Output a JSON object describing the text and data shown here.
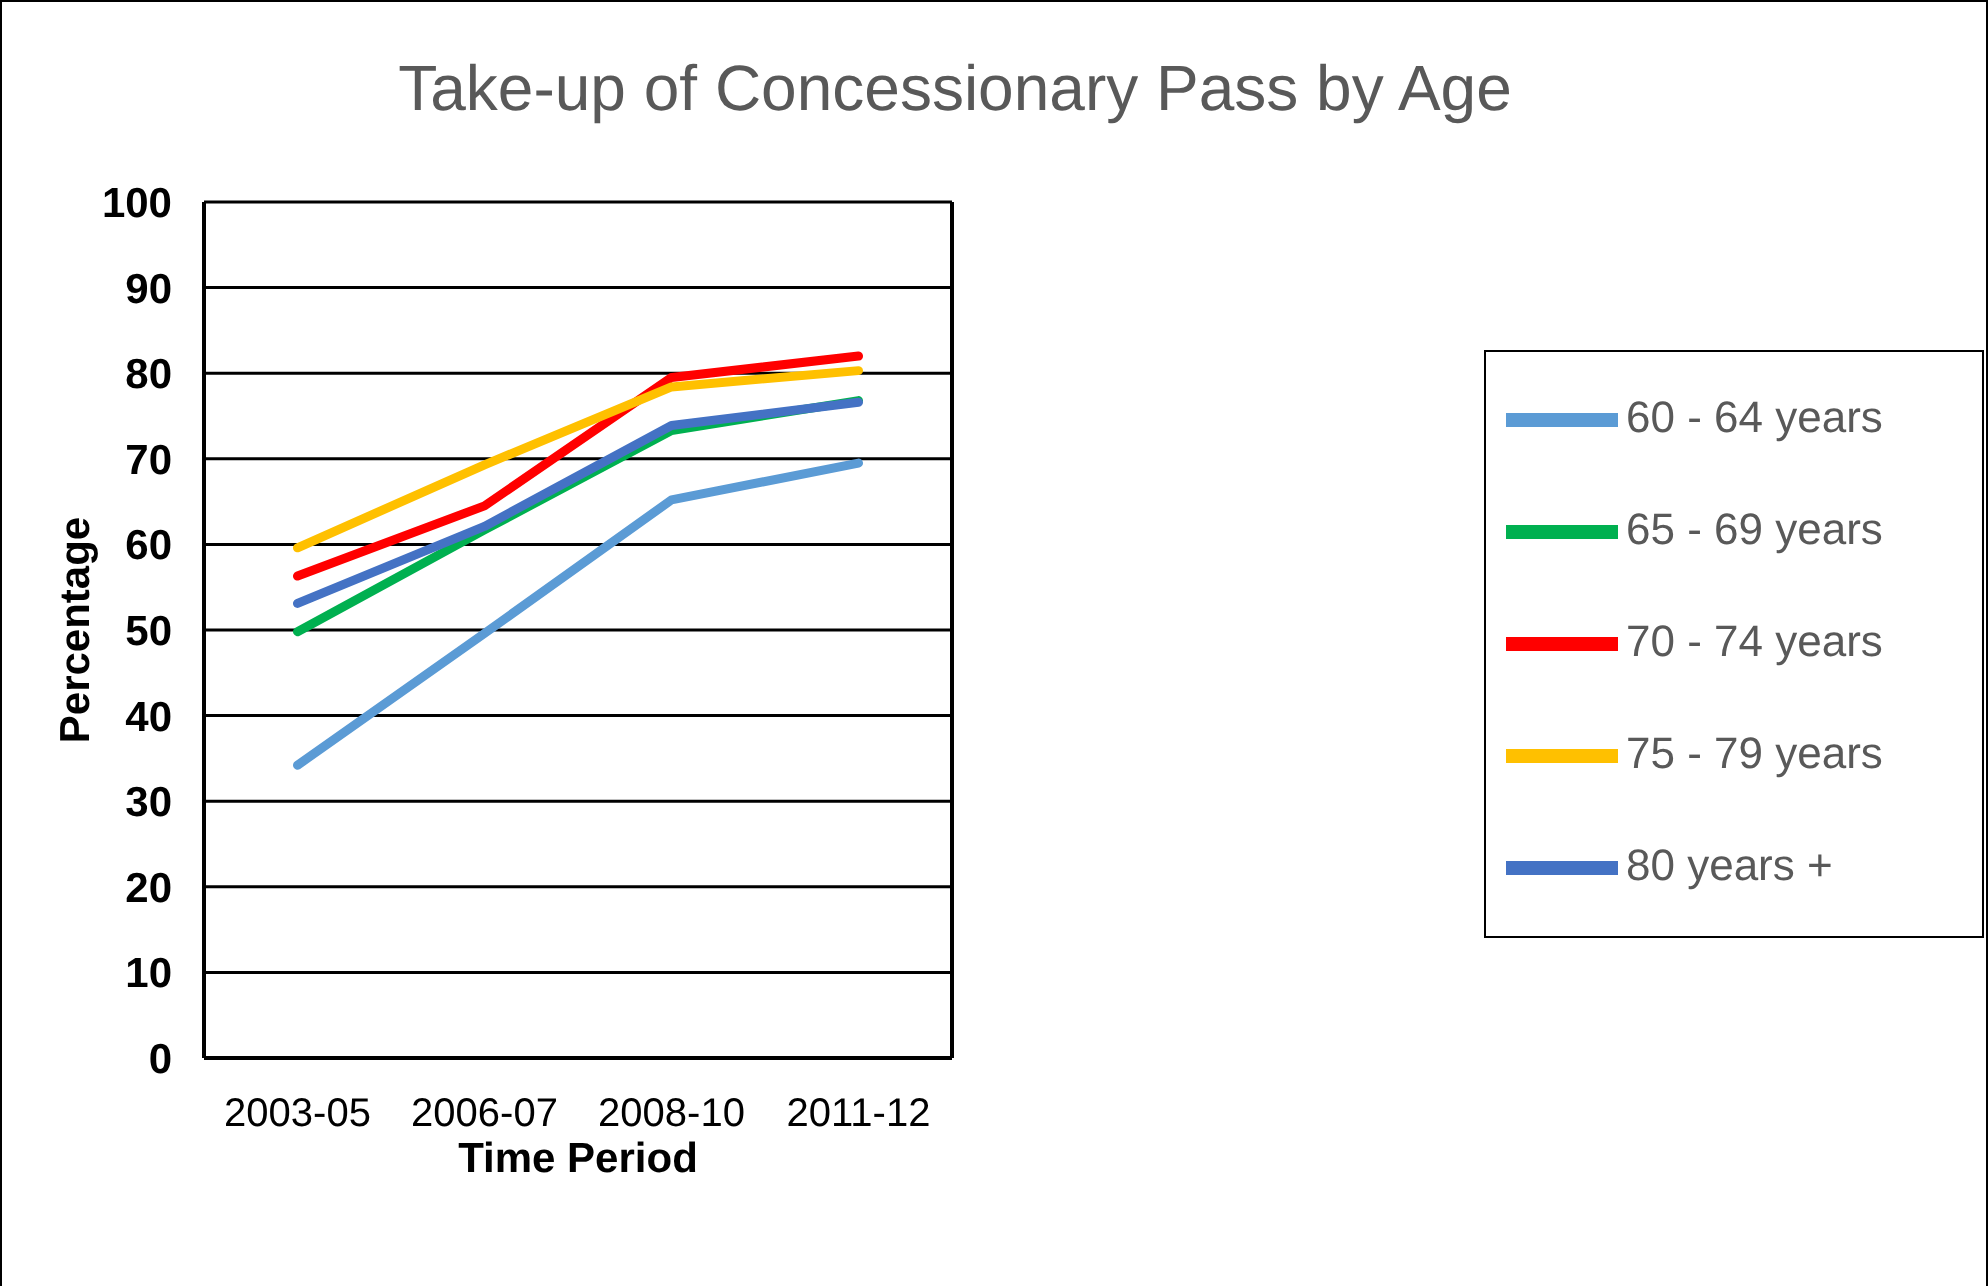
{
  "chart_data": {
    "type": "line",
    "title": "Take-up of Concessionary Pass by Age",
    "xlabel": "Time Period",
    "ylabel": "Percentage",
    "categories": [
      "2003-05",
      "2006-07",
      "2008-10",
      "2011-12"
    ],
    "series": [
      {
        "name": "60 - 64 years",
        "color": "#5b9bd5",
        "values": [
          34.2,
          49.6,
          65.2,
          69.5
        ]
      },
      {
        "name": "65 - 69 years",
        "color": "#00b050",
        "values": [
          49.8,
          61.7,
          73.3,
          76.8
        ]
      },
      {
        "name": "70 - 74 years",
        "color": "#ff0000",
        "values": [
          56.3,
          64.5,
          79.5,
          82
        ]
      },
      {
        "name": "75 - 79 years",
        "color": "#ffc000",
        "values": [
          59.6,
          69.3,
          78.4,
          80.3
        ]
      },
      {
        "name": "80 years +",
        "color": "#4472c4",
        "values": [
          53.1,
          62.1,
          73.9,
          76.6
        ]
      }
    ],
    "ylim": [
      0,
      100
    ],
    "yticks": [
      0,
      10,
      20,
      30,
      40,
      50,
      60,
      70,
      80,
      90,
      100
    ],
    "grid": "y",
    "legend": "right",
    "marker": "none",
    "line_style": "solid"
  }
}
